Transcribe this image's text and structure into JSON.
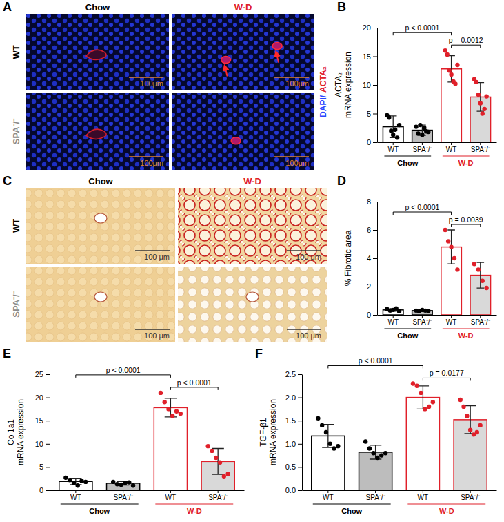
{
  "figure_panels": [
    {
      "letter": "A",
      "columns": [
        {
          "text": "Chow",
          "color": "#000000"
        },
        {
          "text": "W-D",
          "color": "#e0202a"
        }
      ],
      "rows": [
        {
          "text": "WT",
          "color": "#000000"
        },
        {
          "text": "SPA⁻/⁻",
          "color": "#8c8c8c"
        }
      ],
      "scale_bar": "100μm",
      "stain_legend": [
        {
          "text": "DAPI/",
          "color": "#2a46ff"
        },
        {
          "text": "ACTA₂",
          "color": "#e0202a"
        }
      ]
    },
    {
      "letter": "C",
      "columns": [
        {
          "text": "Chow",
          "color": "#000000"
        },
        {
          "text": "W-D",
          "color": "#e0202a"
        }
      ],
      "rows": [
        {
          "text": "WT",
          "color": "#000000"
        },
        {
          "text": "SPA⁻/⁻",
          "color": "#8c8c8c"
        }
      ],
      "scale_bar": "100 μm"
    }
  ],
  "chart_data": [
    {
      "letter": "B",
      "type": "bar",
      "ylabel": [
        "ACTA₂",
        "mRNA expression"
      ],
      "categories": [
        "WT",
        "SPA⁻/⁻",
        "WT",
        "SPA⁻/⁻"
      ],
      "groups": [
        {
          "name": "Chow",
          "color": "#000000",
          "size": 2
        },
        {
          "name": "W-D",
          "color": "#e0202a",
          "size": 2
        }
      ],
      "values": [
        2.7,
        2.1,
        12.8,
        7.9
      ],
      "errors": [
        1.9,
        0.9,
        2.3,
        2.5
      ],
      "points": [
        [
          4.7,
          4.3,
          2.0,
          1.3,
          2.2,
          0.8,
          3.0
        ],
        [
          2.7,
          1.5,
          3.0,
          1.3,
          2.5,
          1.9,
          1.8
        ],
        [
          16.0,
          15.3,
          12.5,
          11.8,
          10.6,
          10.2,
          13.5
        ],
        [
          11.0,
          10.5,
          8.3,
          6.8,
          5.0,
          5.8,
          8.0
        ]
      ],
      "colors": [
        "#ffffff",
        "#bdbdbd",
        "#ffffff",
        "#d9d9d9"
      ],
      "ylim": [
        0,
        20
      ],
      "yticks": [
        0,
        5,
        10,
        15,
        20
      ],
      "comparisons": [
        {
          "label": "p < 0.0001",
          "pair": [
            0,
            2
          ]
        },
        {
          "label": "p = 0.0012",
          "pair": [
            2,
            3
          ]
        }
      ]
    },
    {
      "letter": "D",
      "type": "bar",
      "ylabel": [
        "% Fibrotic area"
      ],
      "categories": [
        "WT",
        "SPA⁻/⁻",
        "WT",
        "SPA⁻/⁻"
      ],
      "groups": [
        {
          "name": "Chow",
          "color": "#000000",
          "size": 2
        },
        {
          "name": "W-D",
          "color": "#e0202a",
          "size": 2
        }
      ],
      "values": [
        0.35,
        0.3,
        4.8,
        2.8
      ],
      "errors": [
        0.1,
        0.07,
        1.2,
        0.9
      ],
      "points": [
        [
          0.4,
          0.3,
          0.35,
          0.45,
          0.25
        ],
        [
          0.3,
          0.25,
          0.35,
          0.3,
          0.28
        ],
        [
          6.0,
          5.2,
          4.8,
          4.0,
          3.2
        ],
        [
          3.6,
          3.2,
          2.4,
          1.9
        ]
      ],
      "colors": [
        "#ffffff",
        "#bdbdbd",
        "#ffffff",
        "#d9d9d9"
      ],
      "ylim": [
        0,
        8
      ],
      "yticks": [
        0,
        2,
        4,
        6,
        8
      ],
      "comparisons": [
        {
          "label": "p < 0.0001",
          "pair": [
            0,
            2
          ]
        },
        {
          "label": "p = 0.0039",
          "pair": [
            2,
            3
          ]
        }
      ]
    },
    {
      "letter": "E",
      "type": "bar",
      "ylabel": [
        "Col1a1",
        "mRNA expression"
      ],
      "categories": [
        "WT",
        "SPA⁻/⁻",
        "WT",
        "SPA⁻/⁻"
      ],
      "groups": [
        {
          "name": "Chow",
          "color": "#000000",
          "size": 2
        },
        {
          "name": "W-D",
          "color": "#e0202a",
          "size": 2
        }
      ],
      "values": [
        1.9,
        1.5,
        17.8,
        6.2
      ],
      "errors": [
        0.7,
        0.4,
        2.0,
        2.8
      ],
      "points": [
        [
          2.7,
          2.2,
          1.6,
          1.0,
          2.0,
          1.8
        ],
        [
          1.8,
          1.3,
          1.2,
          1.6,
          1.7,
          1.0
        ],
        [
          21.0,
          19.0,
          17.5,
          16.0,
          17.0,
          16.5
        ],
        [
          9.5,
          8.5,
          7.0,
          6.0,
          3.0,
          3.5
        ]
      ],
      "colors": [
        "#ffffff",
        "#bdbdbd",
        "#ffffff",
        "#d9d9d9"
      ],
      "ylim": [
        0,
        25
      ],
      "yticks": [
        0,
        5,
        10,
        15,
        20,
        25
      ],
      "comparisons": [
        {
          "label": "p < 0.0001",
          "pair": [
            0,
            2
          ]
        },
        {
          "label": "p < 0.0001",
          "pair": [
            2,
            3
          ]
        }
      ]
    },
    {
      "letter": "F",
      "type": "bar",
      "ylabel": [
        "TGF-β1",
        "mRNA expression"
      ],
      "categories": [
        "WT",
        "SPA⁻/⁻",
        "WT",
        "SPA⁻/⁻"
      ],
      "groups": [
        {
          "name": "Chow",
          "color": "#000000",
          "size": 2
        },
        {
          "name": "W-D",
          "color": "#e0202a",
          "size": 2
        }
      ],
      "values": [
        1.17,
        0.82,
        2.0,
        1.52
      ],
      "errors": [
        0.25,
        0.15,
        0.25,
        0.3
      ],
      "points": [
        [
          1.55,
          1.4,
          1.25,
          1.0,
          0.9,
          0.95
        ],
        [
          1.05,
          0.9,
          0.8,
          0.7,
          0.75,
          0.8
        ],
        [
          2.3,
          2.25,
          2.1,
          1.75,
          1.8,
          1.9
        ],
        [
          1.95,
          1.8,
          1.6,
          1.3,
          1.2,
          1.25,
          1.4
        ]
      ],
      "colors": [
        "#ffffff",
        "#bdbdbd",
        "#ffffff",
        "#d9d9d9"
      ],
      "ylim": [
        0,
        2.5
      ],
      "yticks": [
        {
          "value": 0,
          "label": "0.0"
        },
        0.5,
        {
          "value": 1,
          "label": "1.0"
        },
        1.5,
        {
          "value": 2,
          "label": "2.0"
        },
        2.5
      ],
      "comparisons": [
        {
          "label": "p < 0.0001",
          "pair": [
            0,
            2
          ]
        },
        {
          "label": "p = 0.0177",
          "pair": [
            2,
            3
          ]
        }
      ]
    }
  ]
}
